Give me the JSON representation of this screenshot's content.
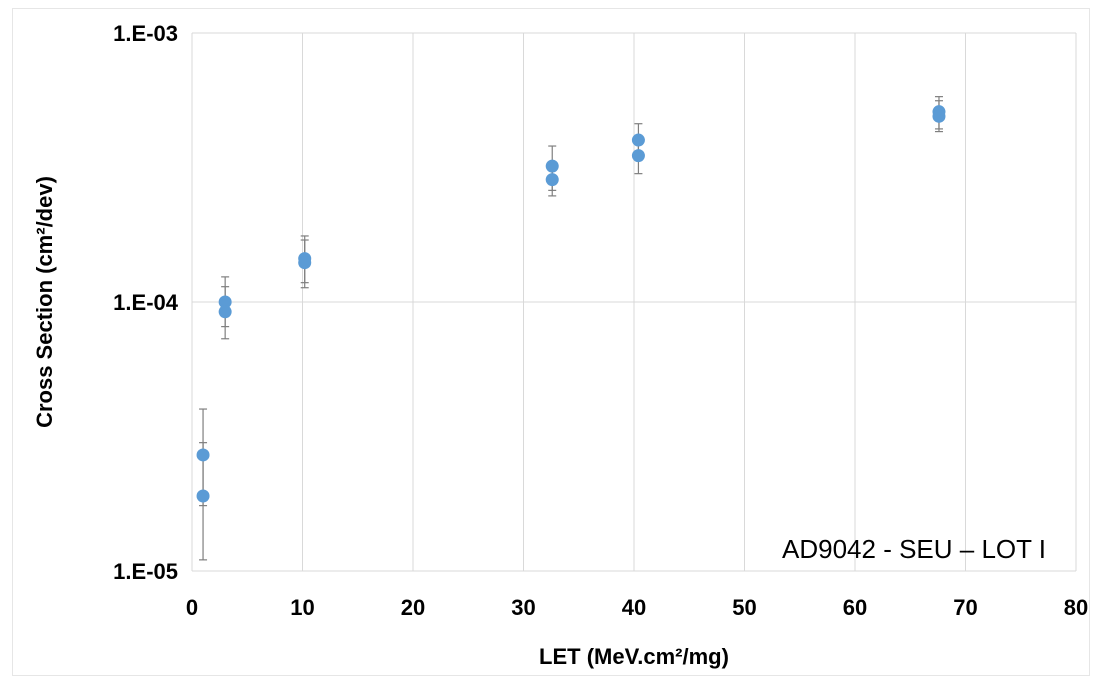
{
  "chart_data": {
    "type": "scatter",
    "title": "",
    "xlabel": "LET (MeV.cm²/mg)",
    "ylabel": "Cross Section (cm²/dev)",
    "xlim": [
      0,
      80
    ],
    "ylim": [
      1e-05,
      0.001
    ],
    "y_scale": "log",
    "x_ticks": [
      "0",
      "10",
      "20",
      "30",
      "40",
      "50",
      "60",
      "70",
      "80"
    ],
    "y_ticks": [
      "1.E-05",
      "1.E-04",
      "1.E-03"
    ],
    "grid": true,
    "annotation": "AD9042 - SEU – LOT I",
    "marker_color": "#5b9bd5",
    "error_bar_color": "#7f7f7f",
    "points": [
      {
        "x": 1.0,
        "y": 2.7e-05,
        "y_err_low": 1.75e-05,
        "y_err_high": 4e-05
      },
      {
        "x": 1.0,
        "y": 1.9e-05,
        "y_err_low": 1.1e-05,
        "y_err_high": 3e-05
      },
      {
        "x": 3.0,
        "y": 0.0001,
        "y_err_low": 8.1e-05,
        "y_err_high": 0.000124
      },
      {
        "x": 3.0,
        "y": 9.2e-05,
        "y_err_low": 7.3e-05,
        "y_err_high": 0.000114
      },
      {
        "x": 10.2,
        "y": 0.000145,
        "y_err_low": 0.000118,
        "y_err_high": 0.000176
      },
      {
        "x": 10.2,
        "y": 0.00014,
        "y_err_low": 0.000113,
        "y_err_high": 0.00017
      },
      {
        "x": 32.6,
        "y": 0.00032,
        "y_err_low": 0.00026,
        "y_err_high": 0.00038
      },
      {
        "x": 32.6,
        "y": 0.000285,
        "y_err_low": 0.000248,
        "y_err_high": 0.00033
      },
      {
        "x": 40.4,
        "y": 0.0004,
        "y_err_low": 0.00034,
        "y_err_high": 0.00046
      },
      {
        "x": 40.4,
        "y": 0.00035,
        "y_err_low": 0.0003,
        "y_err_high": 0.00041
      },
      {
        "x": 67.6,
        "y": 0.00051,
        "y_err_low": 0.00044,
        "y_err_high": 0.00058
      },
      {
        "x": 67.6,
        "y": 0.00049,
        "y_err_low": 0.00043,
        "y_err_high": 0.00056
      }
    ]
  }
}
